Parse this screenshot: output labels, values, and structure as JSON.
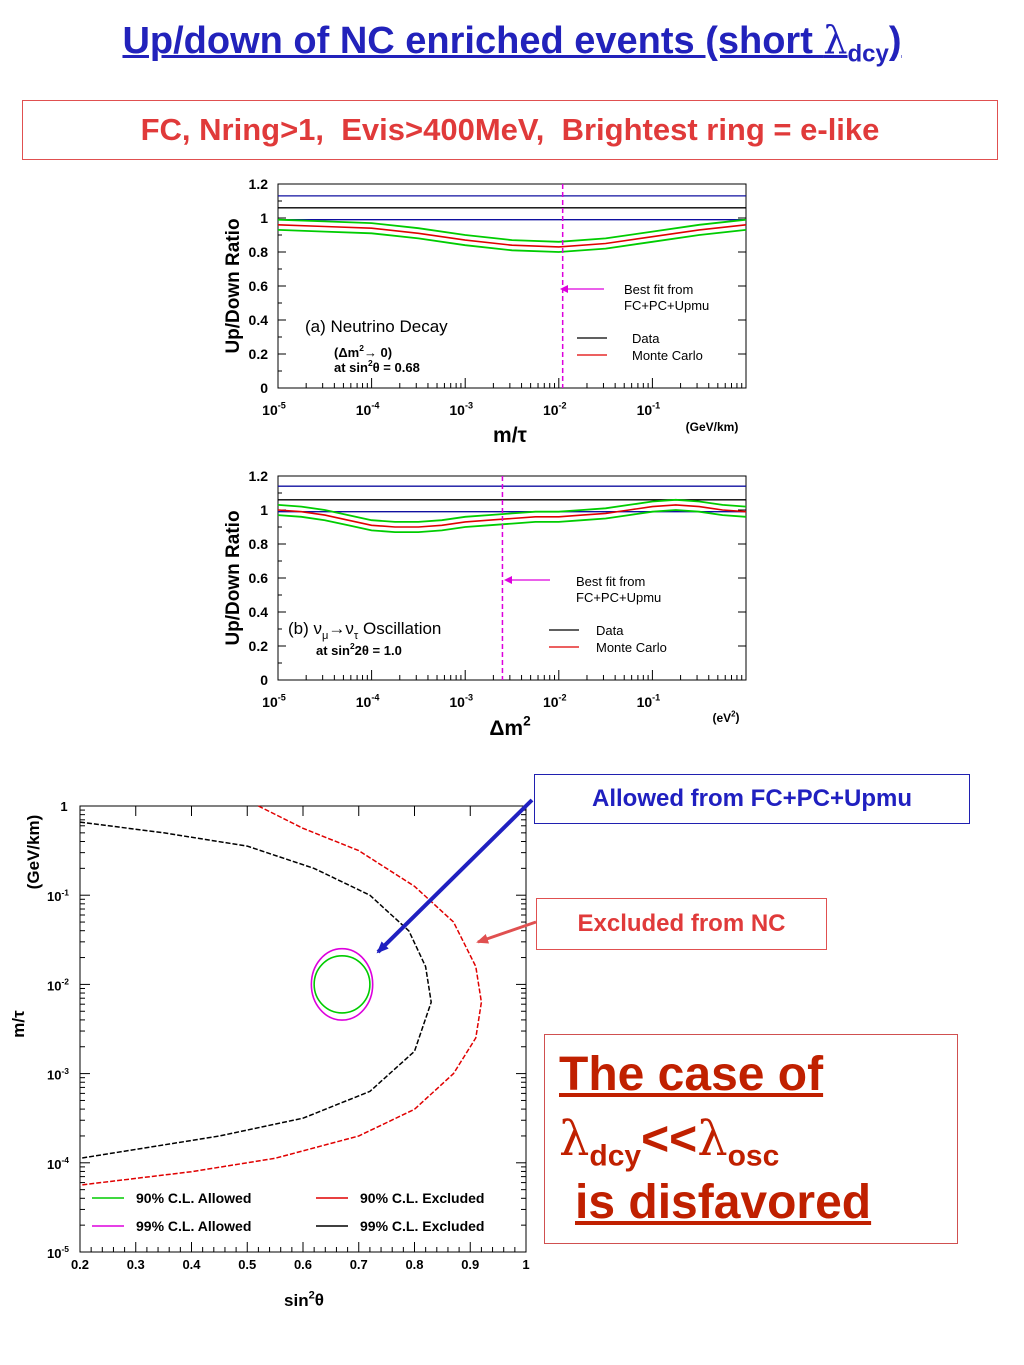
{
  "header": {
    "title_pre": "Up/down of NC enriched events (short ",
    "title_lambda": "λ",
    "title_sub": "dcy",
    "title_post": ")",
    "cuts": "FC, Nring>1,  Evis>400MeV,  Brightest ring = e-like"
  },
  "colors": {
    "title": "#2222bb",
    "cut": "#e03a3a",
    "data": "#000000",
    "mc": "#e00000",
    "band": "#00cc00",
    "bestfit": "#dd00dd",
    "c90_allowed": "#00cc00",
    "c99_allowed": "#dd00dd",
    "c90_excluded": "#e00000",
    "c99_excluded": "#000000"
  },
  "callouts": {
    "allowed": "Allowed from FC+PC+Upmu",
    "excluded": "Excluded from NC"
  },
  "conclusion": {
    "line1": "The case of",
    "lambda": "λ",
    "sub1": "dcy",
    "op": "<<",
    "sub2": "osc",
    "line3": "is disfavored"
  },
  "chart_data": [
    {
      "id": "panelA",
      "type": "line",
      "ylabel": "Up/Down Ratio",
      "xlabel": "m/τ",
      "xunit": "(GeV/km)",
      "xscale": "log",
      "xlim": [
        1e-05,
        1
      ],
      "ylim": [
        0,
        1.2
      ],
      "xticks": [
        {
          "v": 1e-05,
          "b": "10",
          "e": "-5"
        },
        {
          "v": 0.0001,
          "b": "10",
          "e": "-4"
        },
        {
          "v": 0.001,
          "b": "10",
          "e": "-3"
        },
        {
          "v": 0.01,
          "b": "10",
          "e": "-2"
        },
        {
          "v": 0.1,
          "b": "10",
          "e": "-1"
        }
      ],
      "yticks": [
        "0",
        "0.2",
        "0.4",
        "0.6",
        "0.8",
        "1",
        "1.2"
      ],
      "data_lines": [
        1.13,
        1.06,
        0.99
      ],
      "mc_x_log10": [
        -5,
        -4.5,
        -4,
        -3.5,
        -3,
        -2.5,
        -2,
        -1.5,
        -1,
        -0.5,
        0
      ],
      "mc_y": [
        0.96,
        0.95,
        0.94,
        0.91,
        0.87,
        0.84,
        0.83,
        0.85,
        0.89,
        0.93,
        0.96
      ],
      "band_halfwidth": 0.03,
      "best_fit_x": 0.011,
      "annotations": {
        "label": "(a) Neutrino Decay",
        "sub1": "(Δm",
        "sub1_sup": "2",
        "sub1_post": "→ 0)",
        "sub2": "at sin",
        "sub2_sup": "2",
        "sub2_post": "θ = 0.68"
      },
      "bestfit_label": [
        "Best fit from",
        "FC+PC+Upmu"
      ],
      "legend": [
        {
          "name": "Data",
          "color": "#000000"
        },
        {
          "name": "Monte Carlo",
          "color": "#e00000"
        }
      ]
    },
    {
      "id": "panelB",
      "type": "line",
      "ylabel": "Up/Down Ratio",
      "xlabel": "Δm",
      "xlabel_sup": "2",
      "xunit": "(eV",
      "xunit_sup": "2",
      "xunit_post": ")",
      "xscale": "log",
      "xlim": [
        1e-05,
        1
      ],
      "ylim": [
        0,
        1.2
      ],
      "xticks": [
        {
          "v": 1e-05,
          "b": "10",
          "e": "-5"
        },
        {
          "v": 0.0001,
          "b": "10",
          "e": "-4"
        },
        {
          "v": 0.001,
          "b": "10",
          "e": "-3"
        },
        {
          "v": 0.01,
          "b": "10",
          "e": "-2"
        },
        {
          "v": 0.1,
          "b": "10",
          "e": "-1"
        }
      ],
      "yticks": [
        "0",
        "0.2",
        "0.4",
        "0.6",
        "0.8",
        "1",
        "1.2"
      ],
      "data_lines": [
        1.14,
        1.06,
        0.99
      ],
      "mc_x_log10": [
        -5,
        -4.75,
        -4.5,
        -4.25,
        -4,
        -3.75,
        -3.5,
        -3.25,
        -3,
        -2.75,
        -2.5,
        -2.25,
        -2,
        -1.75,
        -1.5,
        -1.25,
        -1,
        -0.75,
        -0.5,
        -0.25,
        0
      ],
      "mc_y": [
        1.0,
        0.99,
        0.97,
        0.94,
        0.91,
        0.9,
        0.9,
        0.91,
        0.93,
        0.94,
        0.95,
        0.96,
        0.96,
        0.97,
        0.98,
        1.0,
        1.02,
        1.03,
        1.02,
        1.0,
        0.99
      ],
      "band_halfwidth": 0.03,
      "best_fit_x": 0.0025,
      "annotations": {
        "label_pre": "(b) ν",
        "label_sub1": "μ",
        "label_mid": "→ν",
        "label_sub2": "τ",
        "label_post": " Oscillation",
        "sub2": "at sin",
        "sub2_sup": "2",
        "sub2_post": "2θ = 1.0"
      },
      "bestfit_label": [
        "Best fit from",
        "FC+PC+Upmu"
      ],
      "legend": [
        {
          "name": "Data",
          "color": "#000000"
        },
        {
          "name": "Monte Carlo",
          "color": "#e00000"
        }
      ]
    },
    {
      "id": "panelC",
      "type": "line",
      "xlabel": "sin",
      "xlabel_sup": "2",
      "xlabel_post": "θ",
      "ylabel": "m/τ",
      "yunit": "(GeV/km)",
      "xlim": [
        0.2,
        1
      ],
      "ylim": [
        1e-05,
        1
      ],
      "yscale": "log",
      "xticks": [
        "0.2",
        "0.3",
        "0.4",
        "0.5",
        "0.6",
        "0.7",
        "0.8",
        "0.9",
        "1"
      ],
      "yticks": [
        {
          "v": 1e-05,
          "b": "10",
          "e": "-5"
        },
        {
          "v": 0.0001,
          "b": "10",
          "e": "-4"
        },
        {
          "v": 0.001,
          "b": "10",
          "e": "-3"
        },
        {
          "v": 0.01,
          "b": "10",
          "e": "-2"
        },
        {
          "v": 0.1,
          "b": "10",
          "e": "-1"
        },
        {
          "v": 1,
          "b": "1",
          "e": ""
        }
      ],
      "allowed_center": {
        "sin2": 0.67,
        "log10_m_tau": -2.0
      },
      "allowed90": {
        "rx": 0.05,
        "rlog": 0.32
      },
      "allowed99": {
        "rx": 0.055,
        "rlog": 0.4
      },
      "excluded90": {
        "sin2": [
          0.52,
          0.6,
          0.7,
          0.8,
          0.87,
          0.91,
          0.92,
          0.91,
          0.87,
          0.8,
          0.7,
          0.55,
          0.4,
          0.2
        ],
        "log10_m_tau": [
          0,
          -0.25,
          -0.5,
          -0.9,
          -1.3,
          -1.8,
          -2.2,
          -2.6,
          -3.0,
          -3.4,
          -3.7,
          -3.95,
          -4.1,
          -4.25
        ]
      },
      "excluded99": {
        "sin2": [
          0.2,
          0.35,
          0.5,
          0.62,
          0.72,
          0.79,
          0.82,
          0.83,
          0.8,
          0.72,
          0.6,
          0.45,
          0.3,
          0.2
        ],
        "log10_m_tau": [
          -0.18,
          -0.3,
          -0.45,
          -0.7,
          -1.0,
          -1.4,
          -1.8,
          -2.2,
          -2.75,
          -3.2,
          -3.5,
          -3.7,
          -3.85,
          -3.95
        ]
      },
      "legend": [
        {
          "name": "90% C.L. Allowed",
          "color": "#00cc00"
        },
        {
          "name": "90% C.L. Excluded",
          "color": "#e00000"
        },
        {
          "name": "99% C.L. Allowed",
          "color": "#dd00dd"
        },
        {
          "name": "99% C.L. Excluded",
          "color": "#000000"
        }
      ]
    }
  ]
}
